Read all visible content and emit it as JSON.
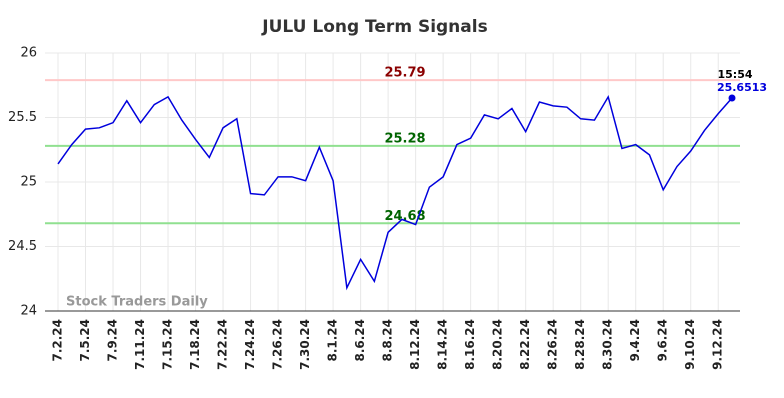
{
  "chart_data": {
    "type": "line",
    "title": "JULU Long Term Signals",
    "categories": [
      "7.2.24",
      null,
      "7.5.24",
      null,
      "7.9.24",
      null,
      "7.11.24",
      null,
      "7.15.24",
      null,
      "7.18.24",
      null,
      "7.22.24",
      null,
      "7.24.24",
      null,
      "7.26.24",
      null,
      "7.30.24",
      null,
      "8.1.24",
      null,
      "8.6.24",
      null,
      "8.8.24",
      null,
      "8.12.24",
      null,
      "8.14.24",
      null,
      "8.16.24",
      null,
      "8.20.24",
      null,
      "8.22.24",
      null,
      "8.26.24",
      null,
      "8.28.24",
      null,
      "8.30.24",
      null,
      "9.4.24",
      null,
      "9.6.24",
      null,
      "9.10.24",
      null,
      "9.12.24",
      null
    ],
    "values": [
      25.14,
      25.29,
      25.41,
      25.42,
      25.46,
      25.63,
      25.46,
      25.6,
      25.66,
      25.48,
      25.33,
      25.19,
      25.42,
      25.49,
      24.91,
      24.9,
      25.04,
      25.04,
      25.01,
      25.27,
      25.01,
      24.18,
      24.4,
      24.23,
      24.61,
      24.71,
      24.67,
      24.96,
      25.04,
      25.29,
      25.34,
      25.52,
      25.49,
      25.57,
      25.39,
      25.62,
      25.59,
      25.58,
      25.49,
      25.48,
      25.66,
      25.26,
      25.29,
      25.21,
      24.94,
      25.12,
      25.24,
      25.4,
      25.53,
      25.6513
    ],
    "color": "#0000dd",
    "ylim": [
      24,
      26
    ],
    "yticks": [
      24,
      24.5,
      25,
      25.5,
      26
    ],
    "grid": true,
    "hlines": [
      {
        "value": 25.79,
        "color": "#ffc8c8",
        "label_color": "#8b0000"
      },
      {
        "value": 25.28,
        "color": "#90e090",
        "label_color": "#006400"
      },
      {
        "value": 24.68,
        "color": "#90e090",
        "label_color": "#006400"
      }
    ],
    "last_time": "15:54",
    "watermark": "Stock Traders Daily"
  }
}
